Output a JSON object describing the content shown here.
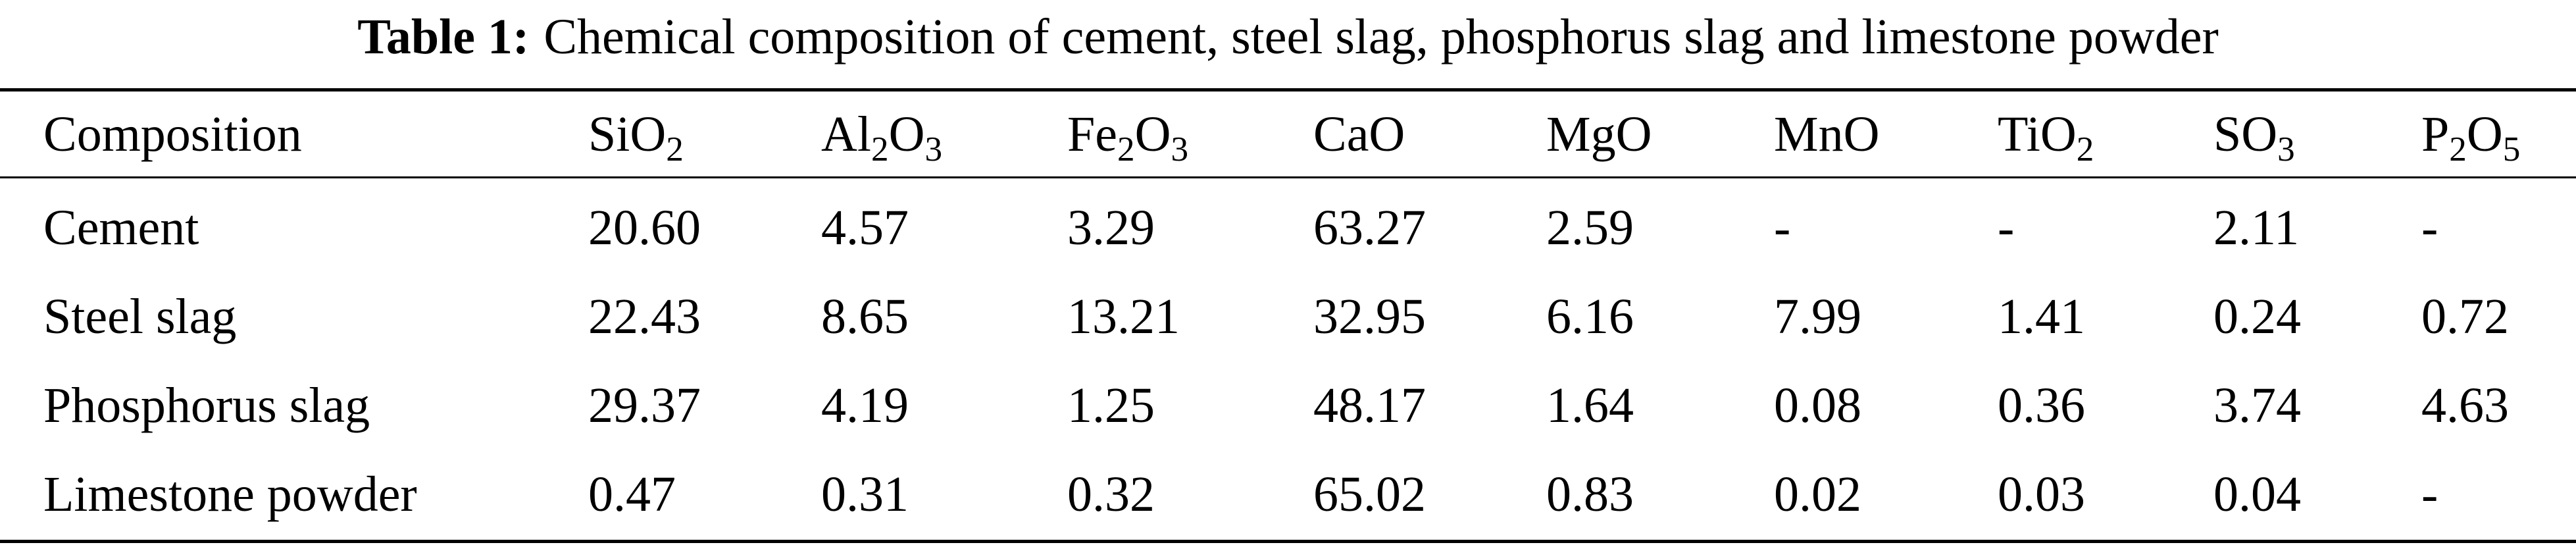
{
  "caption": {
    "label": "Table 1:",
    "text": "Chemical composition of cement, steel slag, phosphorus slag and limestone powder"
  },
  "table": {
    "headers": [
      {
        "parts": [
          {
            "t": "Composition"
          }
        ]
      },
      {
        "parts": [
          {
            "t": "SiO"
          },
          {
            "t": "2",
            "sub": true
          }
        ]
      },
      {
        "parts": [
          {
            "t": "Al"
          },
          {
            "t": "2",
            "sub": true
          },
          {
            "t": "O"
          },
          {
            "t": "3",
            "sub": true
          }
        ]
      },
      {
        "parts": [
          {
            "t": "Fe"
          },
          {
            "t": "2",
            "sub": true
          },
          {
            "t": "O"
          },
          {
            "t": "3",
            "sub": true
          }
        ]
      },
      {
        "parts": [
          {
            "t": "CaO"
          }
        ]
      },
      {
        "parts": [
          {
            "t": "MgO"
          }
        ]
      },
      {
        "parts": [
          {
            "t": "MnO"
          }
        ]
      },
      {
        "parts": [
          {
            "t": "TiO"
          },
          {
            "t": "2",
            "sub": true
          }
        ]
      },
      {
        "parts": [
          {
            "t": "SO"
          },
          {
            "t": "3",
            "sub": true
          }
        ]
      },
      {
        "parts": [
          {
            "t": "P"
          },
          {
            "t": "2",
            "sub": true
          },
          {
            "t": "O"
          },
          {
            "t": "5",
            "sub": true
          }
        ]
      }
    ],
    "rows": [
      [
        "Cement",
        "20.60",
        "4.57",
        "3.29",
        "63.27",
        "2.59",
        "-",
        "-",
        "2.11",
        "-"
      ],
      [
        "Steel slag",
        "22.43",
        "8.65",
        "13.21",
        "32.95",
        "6.16",
        "7.99",
        "1.41",
        "0.24",
        "0.72"
      ],
      [
        "Phosphorus slag",
        "29.37",
        "4.19",
        "1.25",
        "48.17",
        "1.64",
        "0.08",
        "0.36",
        "3.74",
        "4.63"
      ],
      [
        "Limestone powder",
        "0.47",
        "0.31",
        "0.32",
        "65.02",
        "0.83",
        "0.02",
        "0.03",
        "0.04",
        "-"
      ]
    ]
  }
}
